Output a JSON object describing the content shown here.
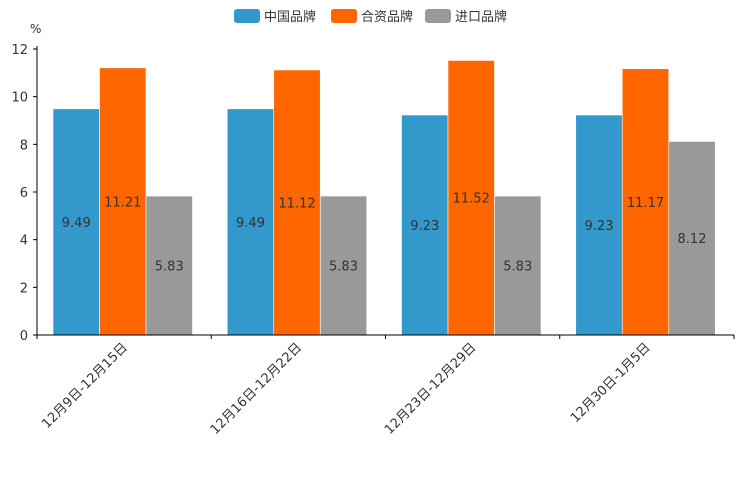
{
  "chart_data": {
    "type": "bar",
    "unit": "%",
    "categories": [
      "12月9日-12月15日",
      "12月16日-12月22日",
      "12月23日-12月29日",
      "12月30日-1月5日"
    ],
    "series": [
      {
        "name": "中国品牌",
        "color": "#3398CC",
        "values": [
          9.49,
          9.49,
          9.23,
          9.23
        ]
      },
      {
        "name": "合资品牌",
        "color": "#FF6600",
        "values": [
          11.21,
          11.12,
          11.52,
          11.17
        ]
      },
      {
        "name": "进口品牌",
        "color": "#999999",
        "values": [
          5.83,
          5.83,
          5.83,
          8.12
        ]
      }
    ],
    "y_ticks": [
      0,
      2,
      4,
      6,
      8,
      10,
      12
    ],
    "ylim": [
      0,
      12
    ],
    "legend_position": "top-center",
    "grid": false
  }
}
